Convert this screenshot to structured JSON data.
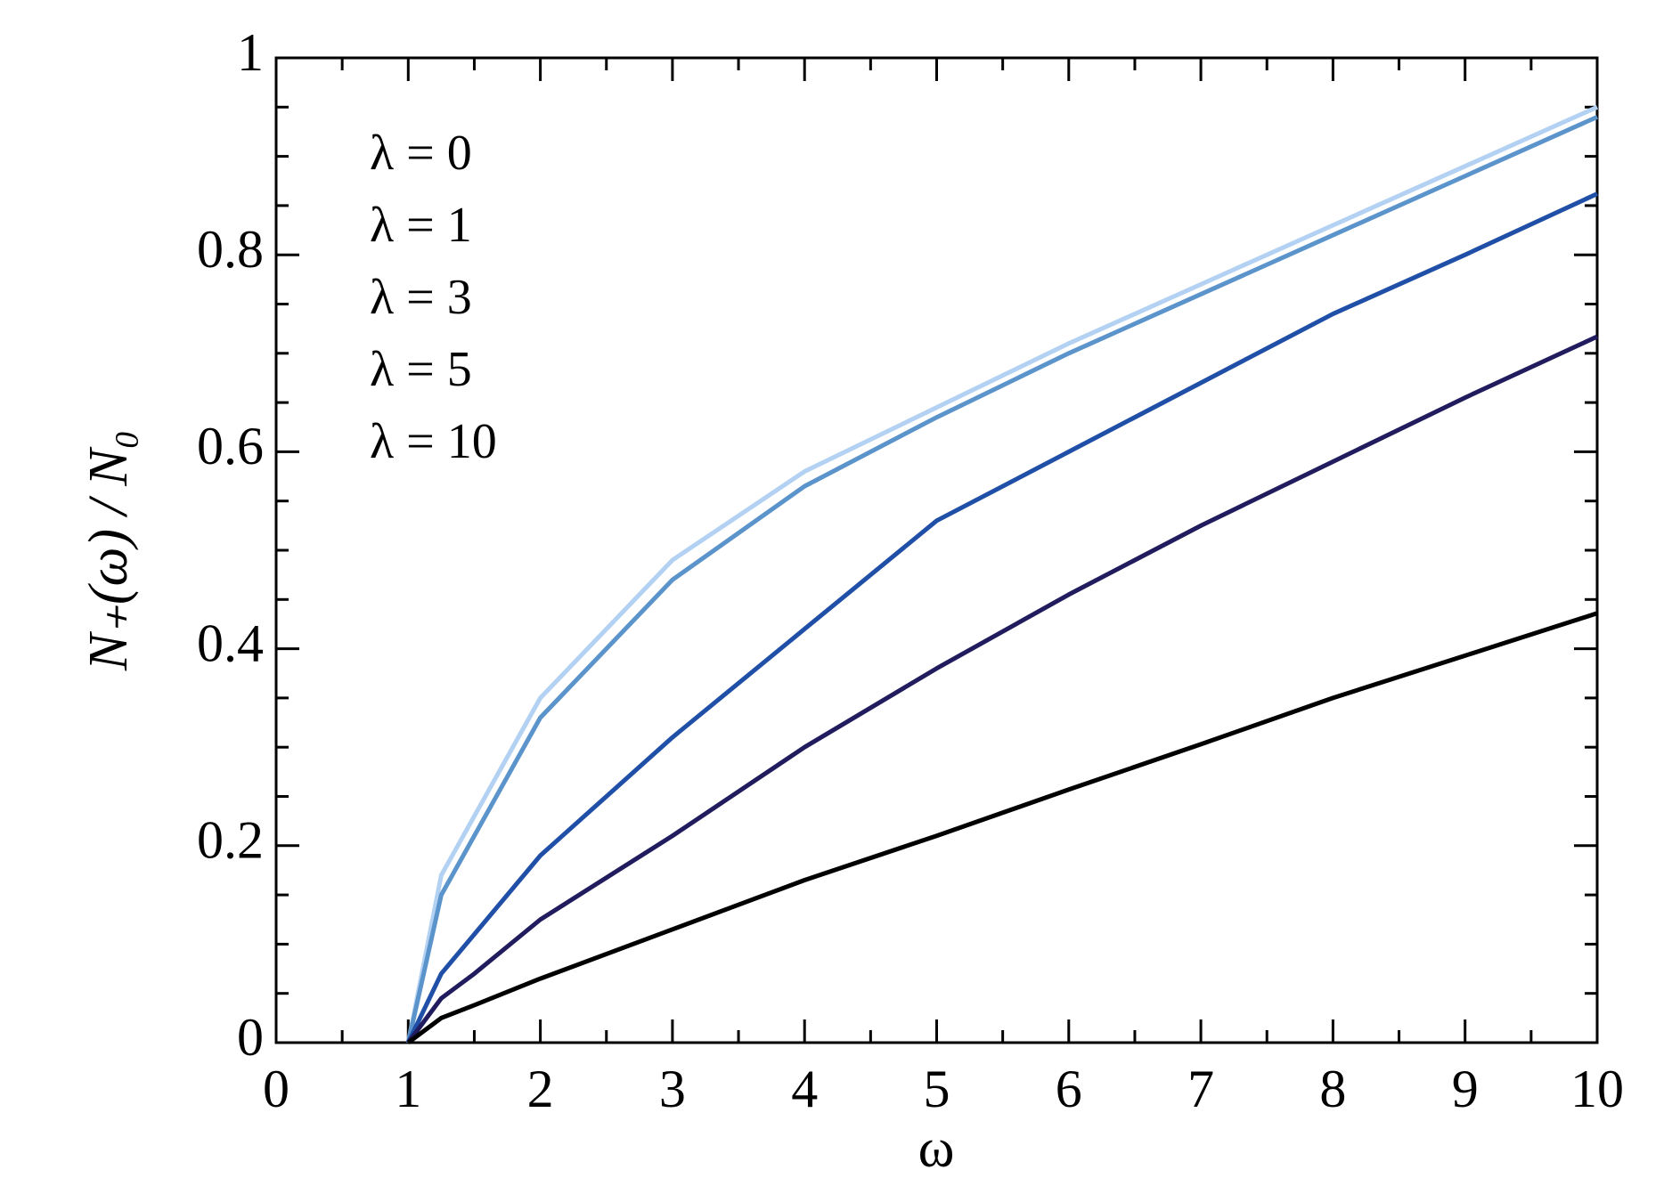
{
  "chart_data": {
    "type": "line",
    "xlabel": "ω",
    "ylabel": "N₊(ω) / N₀",
    "x": [
      1,
      1.25,
      1.5,
      2,
      3,
      4,
      5,
      6,
      7,
      8,
      9,
      10
    ],
    "series": [
      {
        "name": "λ = 0",
        "color": "#b3d1f2",
        "values": [
          0,
          0.17,
          0.23,
          0.35,
          0.49,
          0.58,
          0.645,
          0.71,
          0.77,
          0.83,
          0.89,
          0.95
        ]
      },
      {
        "name": "λ = 1",
        "color": "#5b93cb",
        "values": [
          0,
          0.15,
          0.21,
          0.33,
          0.47,
          0.565,
          0.635,
          0.7,
          0.76,
          0.82,
          0.88,
          0.94
        ]
      },
      {
        "name": "λ = 3",
        "color": "#1f4fa6",
        "values": [
          0,
          0.07,
          0.11,
          0.19,
          0.31,
          0.42,
          0.53,
          0.6,
          0.67,
          0.74,
          0.8,
          0.862
        ]
      },
      {
        "name": "λ = 5",
        "color": "#201c5e",
        "values": [
          0,
          0.045,
          0.07,
          0.125,
          0.21,
          0.3,
          0.38,
          0.455,
          0.525,
          0.59,
          0.655,
          0.717
        ]
      },
      {
        "name": "λ = 10",
        "color": "#000000",
        "values": [
          0,
          0.025,
          0.038,
          0.065,
          0.115,
          0.165,
          0.21,
          0.257,
          0.303,
          0.35,
          0.393,
          0.436
        ]
      }
    ],
    "xlim": [
      0,
      10
    ],
    "xticks": [
      0,
      1,
      2,
      3,
      4,
      5,
      6,
      7,
      8,
      9,
      10
    ],
    "ylim": [
      0,
      1
    ],
    "yticks": [
      0,
      0.2,
      0.4,
      0.6,
      0.8,
      1
    ],
    "grid": false,
    "legend": "upper left"
  }
}
